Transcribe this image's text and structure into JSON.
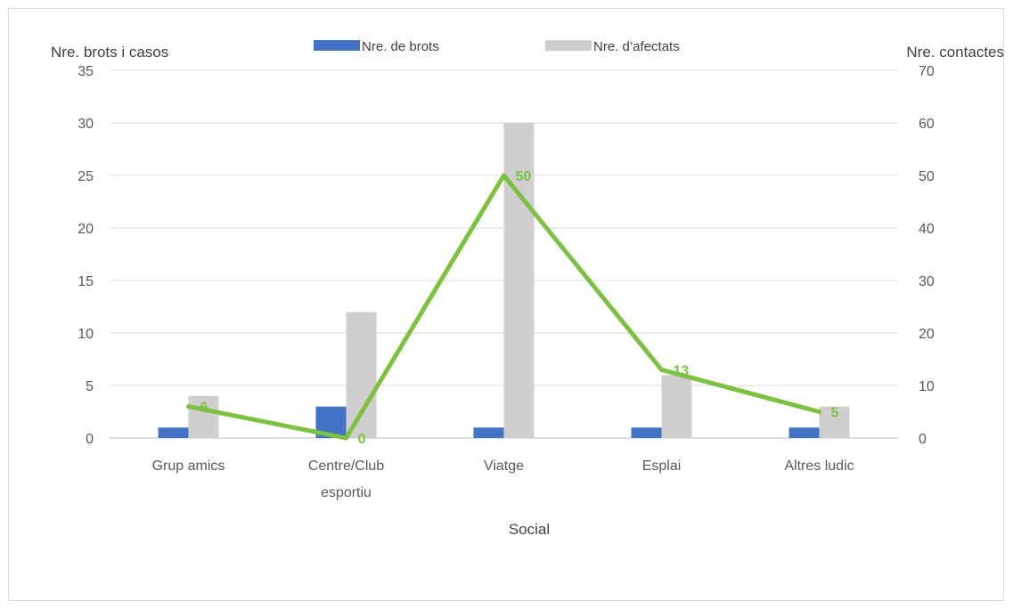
{
  "chart_data": {
    "type": "bar",
    "categories": [
      [
        "Grup amics"
      ],
      [
        "Centre/Club",
        "esportiu"
      ],
      [
        "Viatge"
      ],
      [
        "Esplai"
      ],
      [
        "Altres ludic"
      ]
    ],
    "series": [
      {
        "name": "Nre. de brots",
        "type": "bar",
        "axis": "left",
        "values": [
          1,
          3,
          1,
          1,
          1
        ],
        "color": "#4472c4"
      },
      {
        "name": "Nre. d’afectats",
        "type": "bar",
        "axis": "left",
        "values": [
          4,
          12,
          30,
          6,
          3
        ],
        "color": "#d0cece"
      },
      {
        "name": "",
        "type": "line",
        "axis": "right",
        "values": [
          6,
          0,
          50,
          13,
          5
        ],
        "color": "#7cc142",
        "data_labels": [
          "6",
          "0",
          "50",
          "13",
          "5"
        ]
      }
    ],
    "xlabel": "Social",
    "ylabel": "Nre. brots i casos",
    "y2label": "Nre. contactes",
    "ylim": [
      0,
      35
    ],
    "y2lim": [
      0,
      70
    ],
    "yticks": [
      0,
      5,
      10,
      15,
      20,
      25,
      30,
      35
    ],
    "y2ticks": [
      0,
      10,
      20,
      30,
      40,
      50,
      60,
      70
    ],
    "grid": true,
    "legend": "top-center"
  }
}
